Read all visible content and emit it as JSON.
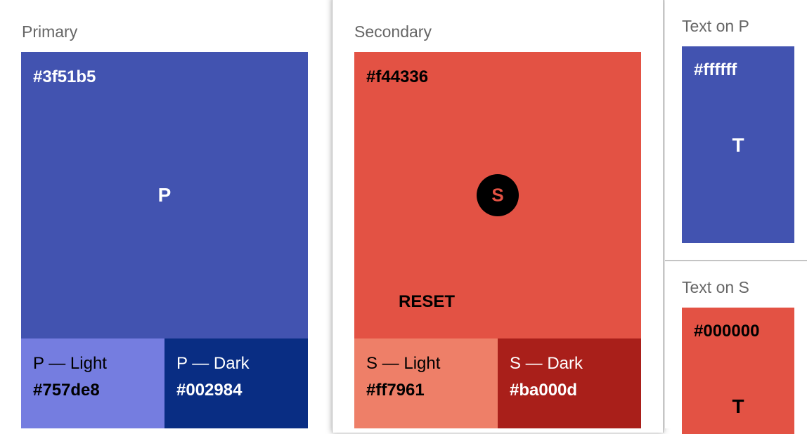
{
  "primary": {
    "title": "Primary",
    "hex": "#3f51b5",
    "letter": "P",
    "color": "#4253b0",
    "light": {
      "label": "P — Light",
      "hex": "#757de8",
      "color": "#757de0"
    },
    "dark": {
      "label": "P — Dark",
      "hex": "#002984",
      "color": "#092d83"
    }
  },
  "secondary": {
    "title": "Secondary",
    "hex": "#f44336",
    "letter": "S",
    "color": "#e35244",
    "reset": "RESET",
    "light": {
      "label": "S — Light",
      "hex": "#ff7961",
      "color": "#ee7f68"
    },
    "dark": {
      "label": "S — Dark",
      "hex": "#ba000d",
      "color": "#a91f1a"
    }
  },
  "text_on_p": {
    "title": "Text on P",
    "hex": "#ffffff",
    "letter": "T"
  },
  "text_on_s": {
    "title": "Text on S",
    "hex": "#000000",
    "letter": "T"
  }
}
